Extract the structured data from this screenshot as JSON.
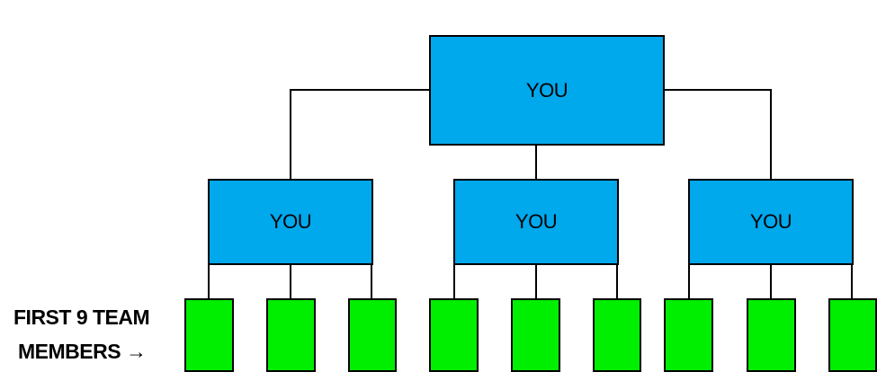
{
  "diagram": {
    "top": {
      "label": "YOU"
    },
    "middle": [
      {
        "label": "YOU"
      },
      {
        "label": "YOU"
      },
      {
        "label": "YOU"
      }
    ],
    "team_label": {
      "line1": "FIRST 9 TEAM",
      "line2": "MEMBERS →"
    },
    "colors": {
      "you_box": "#00a8ec",
      "member_box": "#00ee00",
      "line": "#000000"
    }
  }
}
